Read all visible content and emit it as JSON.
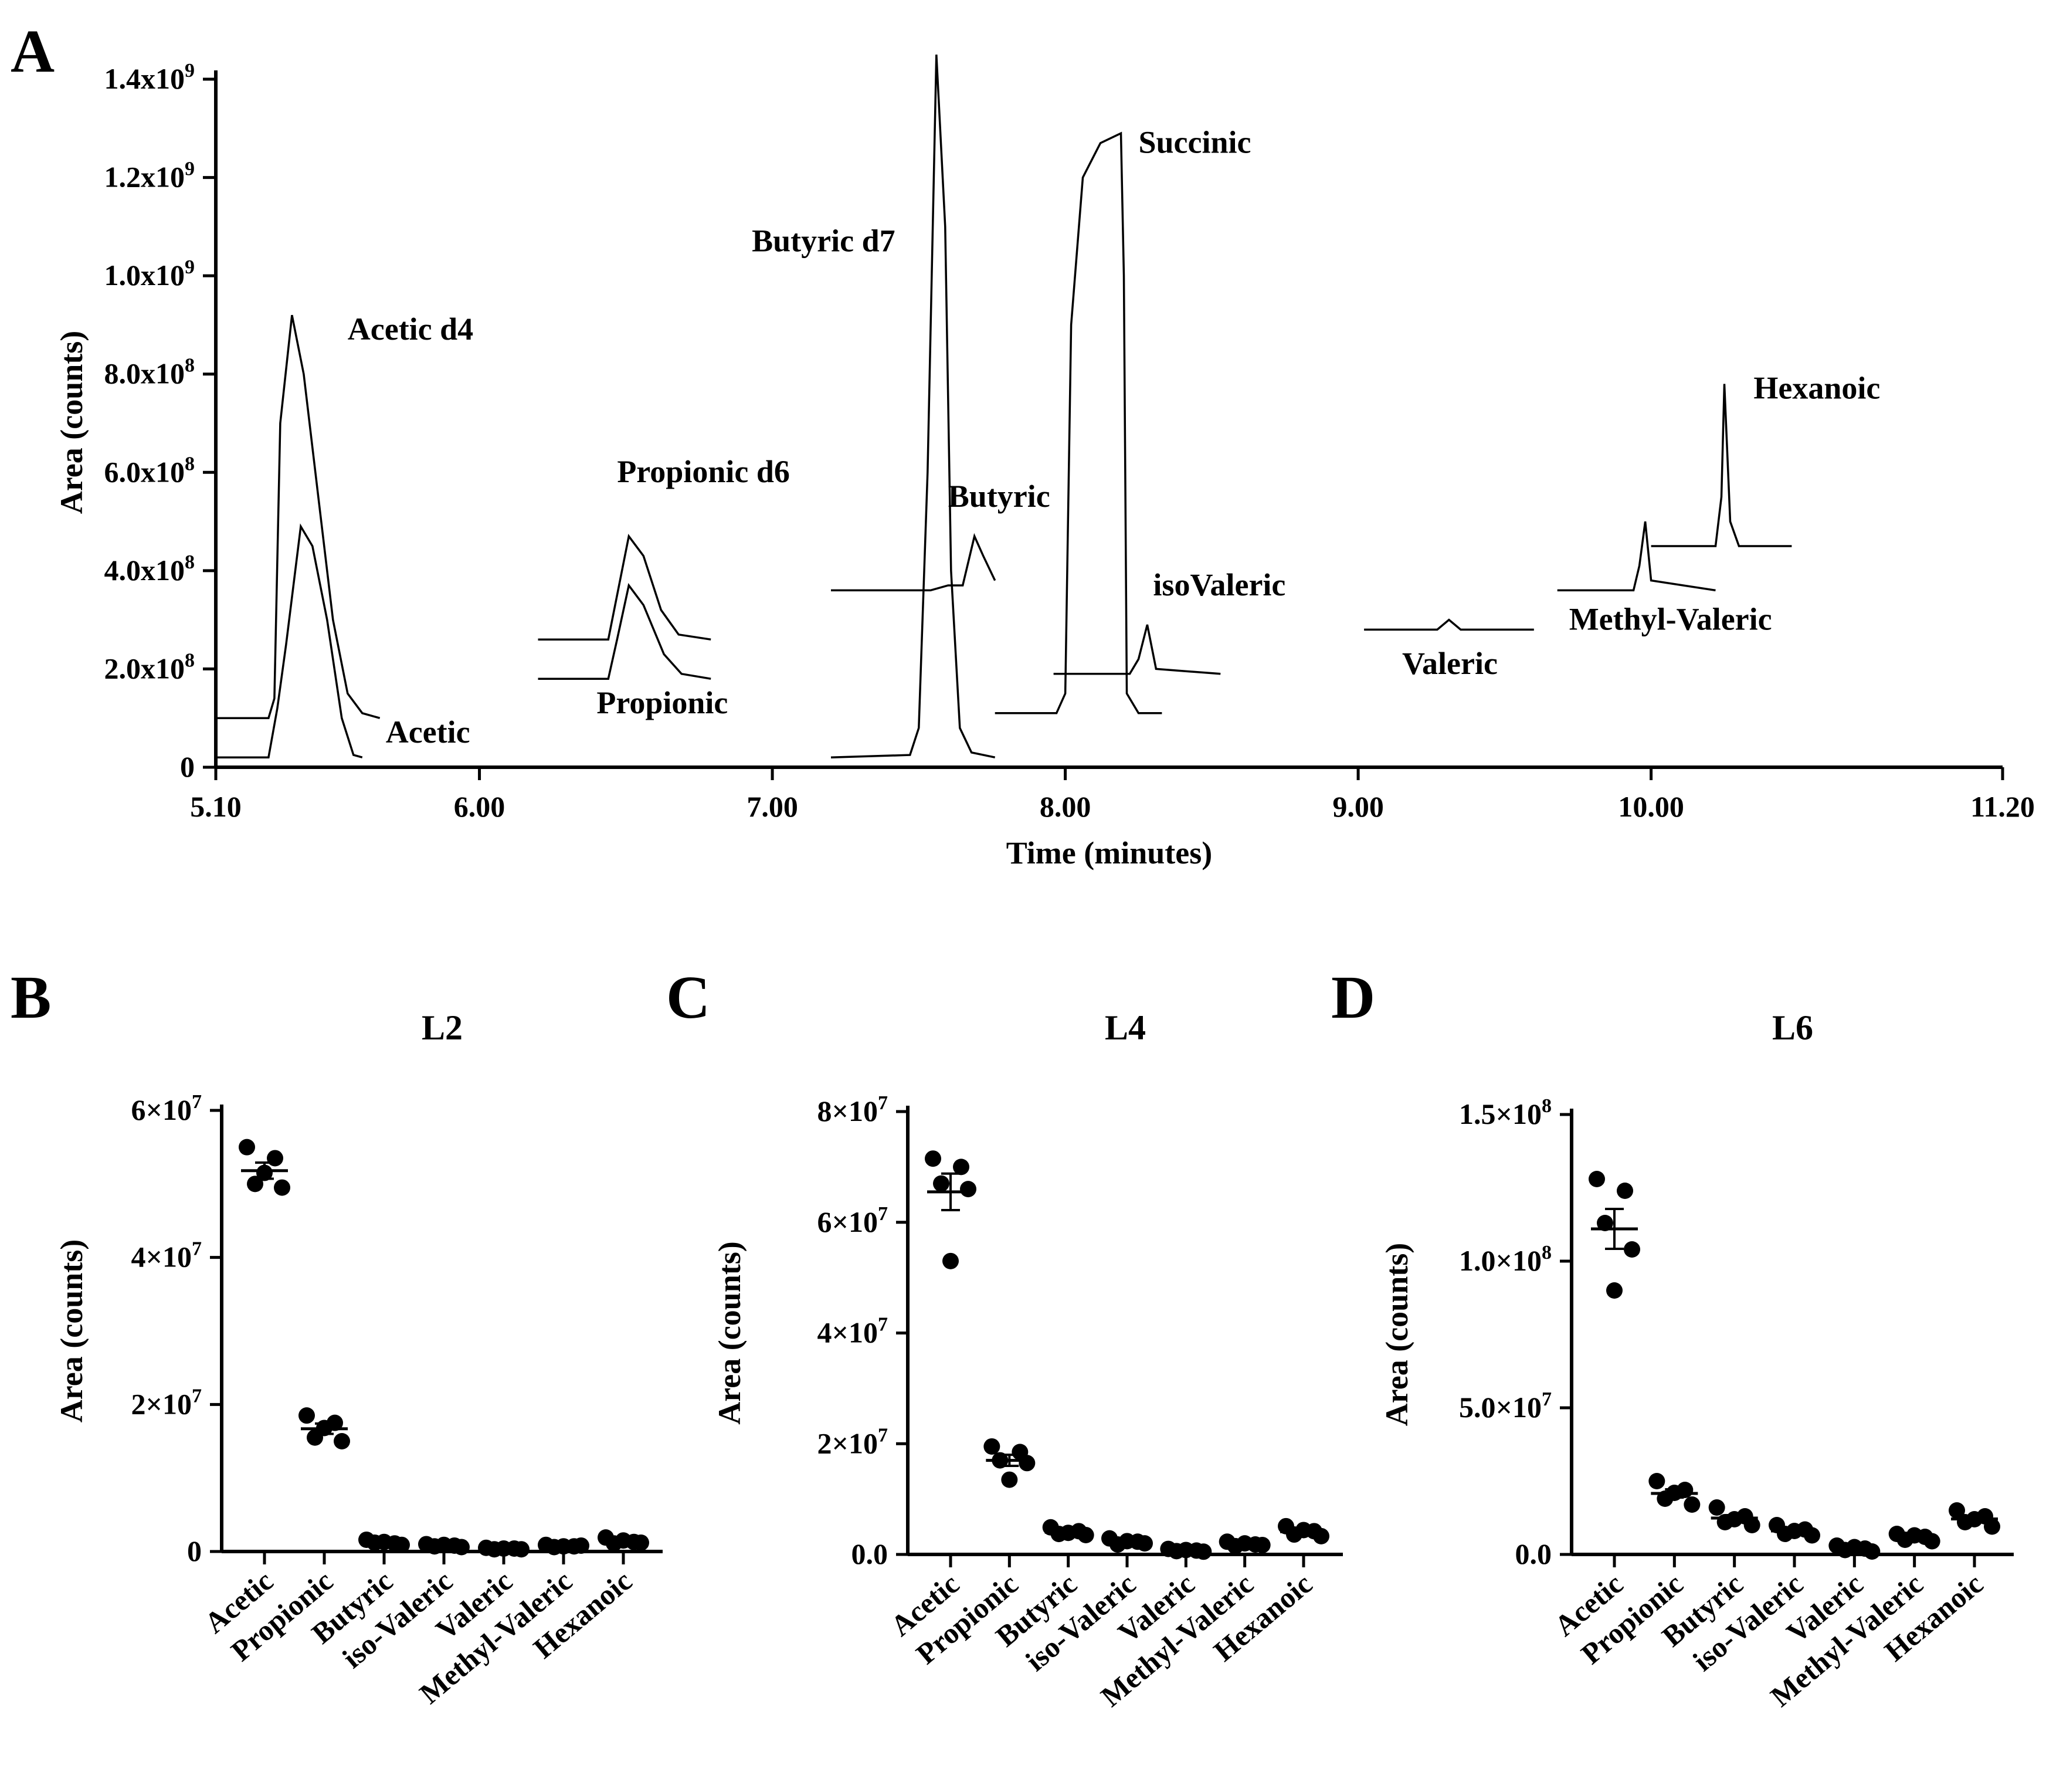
{
  "chart_data": [
    {
      "panel": "A",
      "type": "line",
      "xlabel": "Time (minutes)",
      "ylabel": "Area (counts)",
      "xlim": [
        5.1,
        11.2
      ],
      "ylim": [
        0,
        1400000000
      ],
      "xticks": [
        5.1,
        6.0,
        7.0,
        8.0,
        9.0,
        10.0,
        11.2
      ],
      "xtick_labels": [
        "5.10",
        "6.00",
        "7.00",
        "8.00",
        "9.00",
        "10.00",
        "11.20"
      ],
      "yticks": [
        0,
        200000000,
        400000000,
        600000000,
        800000000,
        1000000000,
        1200000000,
        1400000000
      ],
      "ytick_labels": [
        {
          "base": "0",
          "exp": ""
        },
        {
          "base": "2.0x10",
          "exp": "8"
        },
        {
          "base": "4.0x10",
          "exp": "8"
        },
        {
          "base": "6.0x10",
          "exp": "8"
        },
        {
          "base": "8.0x10",
          "exp": "8"
        },
        {
          "base": "1.0x10",
          "exp": "9"
        },
        {
          "base": "1.2x10",
          "exp": "9"
        },
        {
          "base": "1.4x10",
          "exp": "9"
        }
      ],
      "series": [
        {
          "name": "Acetic d4",
          "points": [
            [
              5.1,
              100000000.0
            ],
            [
              5.28,
              100000000.0
            ],
            [
              5.3,
              140000000.0
            ],
            [
              5.32,
              700000000.0
            ],
            [
              5.36,
              920000000.0
            ],
            [
              5.4,
              800000000.0
            ],
            [
              5.45,
              550000000.0
            ],
            [
              5.5,
              300000000.0
            ],
            [
              5.55,
              150000000.0
            ],
            [
              5.6,
              110000000.0
            ],
            [
              5.66,
              100000000.0
            ]
          ]
        },
        {
          "name": "Acetic",
          "points": [
            [
              5.1,
              20000000.0
            ],
            [
              5.28,
              20000000.0
            ],
            [
              5.31,
              120000000.0
            ],
            [
              5.34,
              250000000.0
            ],
            [
              5.39,
              490000000.0
            ],
            [
              5.43,
              450000000.0
            ],
            [
              5.48,
              300000000.0
            ],
            [
              5.53,
              100000000.0
            ],
            [
              5.57,
              25000000.0
            ],
            [
              5.6,
              20000000.0
            ]
          ]
        },
        {
          "name": "Propionic d6",
          "points": [
            [
              6.2,
              260000000.0
            ],
            [
              6.44,
              260000000.0
            ],
            [
              6.47,
              350000000.0
            ],
            [
              6.51,
              470000000.0
            ],
            [
              6.56,
              430000000.0
            ],
            [
              6.62,
              320000000.0
            ],
            [
              6.68,
              270000000.0
            ],
            [
              6.79,
              260000000.0
            ]
          ]
        },
        {
          "name": "Propionic",
          "points": [
            [
              6.2,
              180000000.0
            ],
            [
              6.44,
              180000000.0
            ],
            [
              6.47,
              260000000.0
            ],
            [
              6.51,
              370000000.0
            ],
            [
              6.56,
              330000000.0
            ],
            [
              6.63,
              230000000.0
            ],
            [
              6.69,
              190000000.0
            ],
            [
              6.79,
              180000000.0
            ]
          ]
        },
        {
          "name": "Butyric d7",
          "points": [
            [
              7.2,
              20000000.0
            ],
            [
              7.47,
              25000000.0
            ],
            [
              7.5,
              80000000.0
            ],
            [
              7.53,
              600000000.0
            ],
            [
              7.56,
              1450000000.0
            ],
            [
              7.59,
              1100000000.0
            ],
            [
              7.61,
              400000000.0
            ],
            [
              7.64,
              80000000.0
            ],
            [
              7.68,
              30000000.0
            ],
            [
              7.76,
              20000000.0
            ]
          ]
        },
        {
          "name": "Butyric",
          "points": [
            [
              7.2,
              360000000.0
            ],
            [
              7.54,
              360000000.0
            ],
            [
              7.6,
              370000000.0
            ],
            [
              7.65,
              370000000.0
            ],
            [
              7.69,
              470000000.0
            ],
            [
              7.72,
              430000000.0
            ],
            [
              7.76,
              380000000.0
            ]
          ]
        },
        {
          "name": "Succinic",
          "points": [
            [
              7.76,
              110000000.0
            ],
            [
              7.97,
              110000000.0
            ],
            [
              8.0,
              150000000.0
            ],
            [
              8.02,
              900000000.0
            ],
            [
              8.06,
              1200000000.0
            ],
            [
              8.12,
              1270000000.0
            ],
            [
              8.19,
              1290000000.0
            ],
            [
              8.2,
              1000000000.0
            ],
            [
              8.21,
              150000000.0
            ],
            [
              8.25,
              110000000.0
            ],
            [
              8.33,
              110000000.0
            ]
          ]
        },
        {
          "name": "isoValeric",
          "points": [
            [
              7.96,
              190000000.0
            ],
            [
              8.22,
              190000000.0
            ],
            [
              8.25,
              220000000.0
            ],
            [
              8.28,
              290000000.0
            ],
            [
              8.31,
              200000000.0
            ],
            [
              8.53,
              190000000.0
            ]
          ]
        },
        {
          "name": "Valeric",
          "points": [
            [
              9.02,
              280000000.0
            ],
            [
              9.27,
              280000000.0
            ],
            [
              9.31,
              300000000.0
            ],
            [
              9.35,
              280000000.0
            ],
            [
              9.6,
              280000000.0
            ]
          ]
        },
        {
          "name": "Methyl-Valeric",
          "points": [
            [
              9.68,
              360000000.0
            ],
            [
              9.94,
              360000000.0
            ],
            [
              9.96,
              410000000.0
            ],
            [
              9.98,
              500000000.0
            ],
            [
              10.0,
              380000000.0
            ],
            [
              10.22,
              360000000.0
            ]
          ]
        },
        {
          "name": "Hexanoic",
          "points": [
            [
              10.0,
              450000000.0
            ],
            [
              10.22,
              450000000.0
            ],
            [
              10.24,
              550000000.0
            ],
            [
              10.25,
              780000000.0
            ],
            [
              10.27,
              500000000.0
            ],
            [
              10.3,
              450000000.0
            ],
            [
              10.48,
              450000000.0
            ]
          ]
        }
      ],
      "annotations": [
        {
          "text": "Acetic d4",
          "x": 5.55,
          "y": 870000000.0
        },
        {
          "text": "Acetic",
          "x": 5.68,
          "y": 50000000.0
        },
        {
          "text": "Propionic d6",
          "x": 6.47,
          "y": 580000000.0
        },
        {
          "text": "Propionic",
          "x": 6.4,
          "y": 110000000.0
        },
        {
          "text": "Butyric d7",
          "x": 6.93,
          "y": 1050000000.0
        },
        {
          "text": "Butyric",
          "x": 7.6,
          "y": 530000000.0
        },
        {
          "text": "Succinic",
          "x": 8.25,
          "y": 1250000000.0
        },
        {
          "text": "isoValeric",
          "x": 8.3,
          "y": 350000000.0
        },
        {
          "text": "Valeric",
          "x": 9.15,
          "y": 190000000.0
        },
        {
          "text": "Methyl-Valeric",
          "x": 9.72,
          "y": 280000000.0
        },
        {
          "text": "Hexanoic",
          "x": 10.35,
          "y": 750000000.0
        }
      ]
    },
    {
      "panel": "B",
      "type": "scatter",
      "title": "L2",
      "ylabel": "Area (counts)",
      "ylim": [
        0,
        60000000
      ],
      "yticks": [
        0,
        20000000,
        40000000,
        60000000
      ],
      "ytick_labels": [
        {
          "base": "0",
          "exp": ""
        },
        {
          "base": "2×10",
          "exp": "7"
        },
        {
          "base": "4×10",
          "exp": "7"
        },
        {
          "base": "6×10",
          "exp": "7"
        }
      ],
      "categories": [
        "Acetic",
        "Propionic",
        "Butyric",
        "iso-Valeric",
        "Valeric",
        "Methyl-Valeric",
        "Hexanoic"
      ],
      "points": [
        [
          55000000,
          53500000,
          50000000,
          49500000,
          51500000
        ],
        [
          18500000,
          17500000,
          15500000,
          15000000,
          16800000
        ],
        [
          1600000,
          1100000,
          1200000,
          900000,
          1300000
        ],
        [
          1000000,
          800000,
          700000,
          600000,
          900000
        ],
        [
          500000,
          400000,
          300000,
          300000,
          400000
        ],
        [
          900000,
          700000,
          600000,
          800000,
          700000
        ],
        [
          1900000,
          1300000,
          1100000,
          1200000,
          1500000
        ]
      ],
      "mean": [
        51800000,
        16700000,
        1200000,
        800000,
        400000,
        700000,
        1400000
      ],
      "sem": [
        1100000,
        700000,
        120000,
        70000,
        40000,
        60000,
        140000
      ]
    },
    {
      "panel": "C",
      "type": "scatter",
      "title": "L4",
      "ylabel": "Area (counts)",
      "ylim": [
        0,
        80000000
      ],
      "yticks": [
        0,
        20000000,
        40000000,
        60000000,
        80000000
      ],
      "ytick_labels": [
        {
          "base": "0.0",
          "exp": ""
        },
        {
          "base": "2×10",
          "exp": "7"
        },
        {
          "base": "4×10",
          "exp": "7"
        },
        {
          "base": "6×10",
          "exp": "7"
        },
        {
          "base": "8×10",
          "exp": "7"
        }
      ],
      "categories": [
        "Acetic",
        "Propionic",
        "Butyric",
        "iso-Valeric",
        "Valeric",
        "Methyl-Valeric",
        "Hexanoic"
      ],
      "points": [
        [
          71500000,
          70000000,
          67000000,
          66000000,
          53000000
        ],
        [
          19500000,
          18500000,
          17000000,
          16500000,
          13500000
        ],
        [
          4900000,
          4200000,
          3700000,
          3500000,
          3900000
        ],
        [
          2900000,
          2300000,
          1800000,
          2000000,
          2400000
        ],
        [
          1000000,
          700000,
          600000,
          500000,
          800000
        ],
        [
          2300000,
          1800000,
          1500000,
          1700000,
          2000000
        ],
        [
          5100000,
          4200000,
          3600000,
          3300000,
          4400000
        ]
      ],
      "mean": [
        65500000,
        17000000,
        4000000,
        2300000,
        700000,
        1900000,
        4100000
      ],
      "sem": [
        3300000,
        1000000,
        250000,
        190000,
        90000,
        140000,
        310000
      ]
    },
    {
      "panel": "D",
      "type": "scatter",
      "title": "L6",
      "ylabel": "Area (counts)",
      "ylim": [
        0,
        150000000
      ],
      "yticks": [
        0,
        50000000,
        100000000,
        150000000
      ],
      "ytick_labels": [
        {
          "base": "0.0",
          "exp": ""
        },
        {
          "base": "5.0×10",
          "exp": "7"
        },
        {
          "base": "1.0×10",
          "exp": "8"
        },
        {
          "base": "1.5×10",
          "exp": "8"
        }
      ],
      "categories": [
        "Acetic",
        "Propionic",
        "Butyric",
        "iso-Valeric",
        "Valeric",
        "Methyl-Valeric",
        "Hexanoic"
      ],
      "points": [
        [
          128000000,
          124000000,
          113000000,
          104000000,
          90000000
        ],
        [
          25000000,
          22000000,
          19000000,
          17000000,
          21000000
        ],
        [
          16000000,
          13000000,
          11000000,
          10000000,
          12000000
        ],
        [
          10000000,
          8500000,
          7000000,
          6500000,
          8000000
        ],
        [
          3000000,
          2000000,
          1500000,
          1000000,
          2500000
        ],
        [
          7000000,
          6000000,
          5000000,
          4500000,
          6500000
        ],
        [
          15000000,
          13000000,
          11000000,
          9500000,
          12000000
        ]
      ],
      "mean": [
        111000000,
        20800000,
        12400000,
        8000000,
        2000000,
        5800000,
        12100000
      ],
      "sem": [
        6800000,
        1400000,
        1000000,
        700000,
        300000,
        450000,
        950000
      ]
    }
  ]
}
